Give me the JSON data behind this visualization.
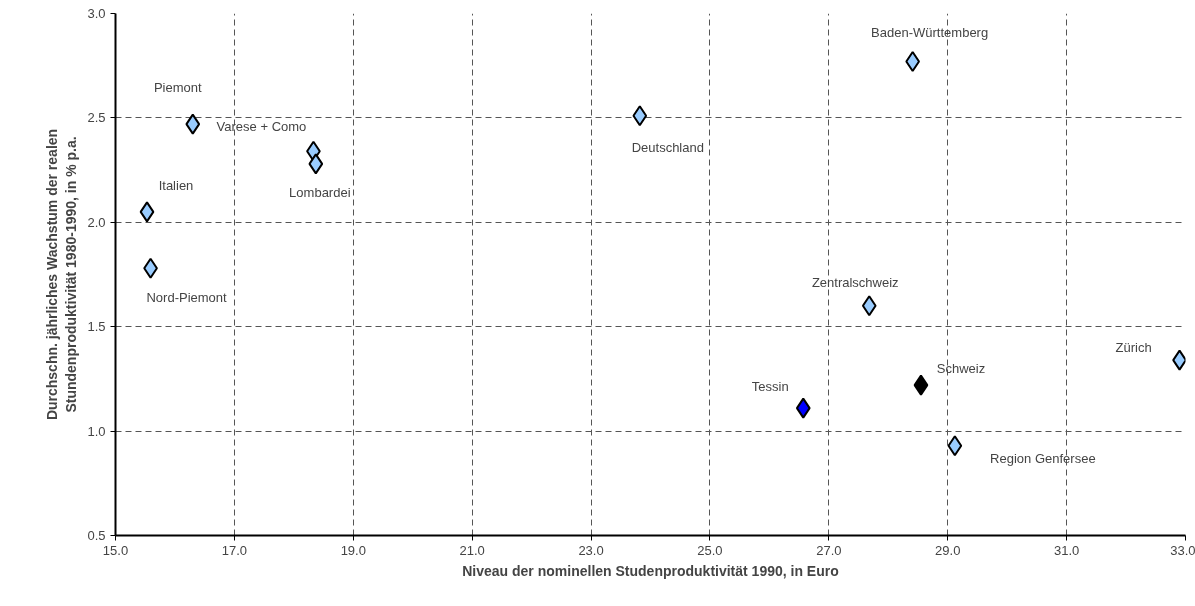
{
  "chart_data": {
    "type": "scatter",
    "marker": "diamond",
    "grid": true,
    "xlabel": "Niveau der nominellen Studenproduktivität 1990, in Euro",
    "ylabel": "Durchschn. jährliches Wachstum der realen\nStundenproduktivität 1980-1990, in % p.a.",
    "xlim": [
      15,
      33
    ],
    "ylim": [
      0.5,
      3.0
    ],
    "xticks": [
      {
        "value": 15,
        "label": "15.0"
      },
      {
        "value": 17,
        "label": "17.0"
      },
      {
        "value": 19,
        "label": "19.0"
      },
      {
        "value": 21,
        "label": "21.0"
      },
      {
        "value": 23,
        "label": "23.0"
      },
      {
        "value": 25,
        "label": "25.0"
      },
      {
        "value": 27,
        "label": "27.0"
      },
      {
        "value": 29,
        "label": "29.0"
      },
      {
        "value": 31,
        "label": "31.0"
      },
      {
        "value": 33,
        "label": "33.0"
      }
    ],
    "yticks": [
      0.5,
      {
        "value": 1,
        "label": "1.0"
      },
      1.5,
      {
        "value": 2,
        "label": "2.0"
      },
      2.5,
      {
        "value": 3,
        "label": "3.0"
      }
    ],
    "x": [
      16.3,
      18.33,
      18.37,
      15.53,
      15.59,
      23.82,
      28.41,
      27.68,
      32.9,
      28.55,
      26.57,
      29.12
    ],
    "values": [
      2.47,
      2.34,
      2.28,
      2.05,
      1.78,
      2.51,
      2.77,
      1.6,
      1.34,
      1.22,
      1.11,
      0.93
    ],
    "colors": [
      "#99ccff",
      "#99ccff",
      "#99ccff",
      "#99ccff",
      "#99ccff",
      "#99ccff",
      "#99ccff",
      "#99ccff",
      "#99ccff",
      "#000000",
      "#0000ff",
      "#99ccff"
    ],
    "annotations": [
      {
        "text": "Piemont",
        "x": 16.3,
        "y": 2.47
      },
      {
        "text": "Varese + Como",
        "x": 18.33,
        "y": 2.34
      },
      {
        "text": "Lombardei",
        "x": 18.37,
        "y": 2.28
      },
      {
        "text": "Italien",
        "x": 15.53,
        "y": 2.05
      },
      {
        "text": "Nord-Piemont",
        "x": 15.59,
        "y": 1.78
      },
      {
        "text": "Deutschland",
        "x": 23.82,
        "y": 2.51
      },
      {
        "text": "Baden-Württemberg",
        "x": 28.41,
        "y": 2.77
      },
      {
        "text": "Zentralschweiz",
        "x": 27.68,
        "y": 1.6
      },
      {
        "text": "Zürich",
        "x": 32.9,
        "y": 1.34
      },
      {
        "text": "Schweiz",
        "x": 28.55,
        "y": 1.22
      },
      {
        "text": "Tessin",
        "x": 26.57,
        "y": 1.11
      },
      {
        "text": "Region Genfersee",
        "x": 29.12,
        "y": 0.93
      }
    ]
  }
}
